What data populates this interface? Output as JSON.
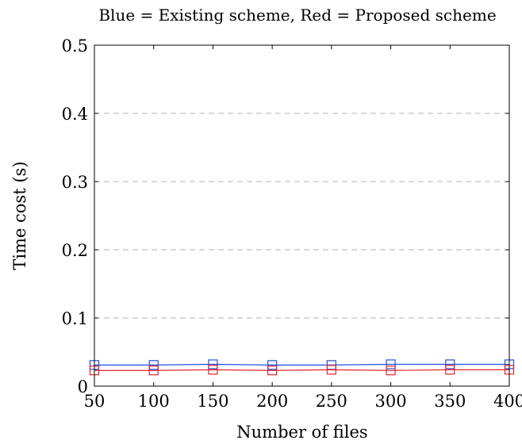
{
  "chart_data": {
    "type": "line",
    "title": "Blue = Existing scheme, Red = Proposed scheme",
    "xlabel": "Number of files",
    "ylabel": "Time cost (s)",
    "x": [
      50,
      100,
      150,
      200,
      250,
      300,
      350,
      400
    ],
    "xlim": [
      50,
      400
    ],
    "ylim": [
      0,
      0.5
    ],
    "x_ticks": [
      50,
      100,
      150,
      200,
      250,
      300,
      350,
      400
    ],
    "y_ticks": [
      0,
      0.1,
      0.2,
      0.3,
      0.4,
      0.5
    ],
    "y_tick_labels": [
      "0",
      "0.1",
      "0.2",
      "0.3",
      "0.4",
      "0.5"
    ],
    "grid": "horizontal dashed",
    "marker": "square",
    "series": [
      {
        "color": "#1f4fe0",
        "values": [
          0.031,
          0.031,
          0.032,
          0.031,
          0.031,
          0.032,
          0.032,
          0.032
        ]
      },
      {
        "color": "#e0242d",
        "values": [
          0.023,
          0.023,
          0.024,
          0.023,
          0.024,
          0.023,
          0.024,
          0.024
        ]
      }
    ]
  }
}
